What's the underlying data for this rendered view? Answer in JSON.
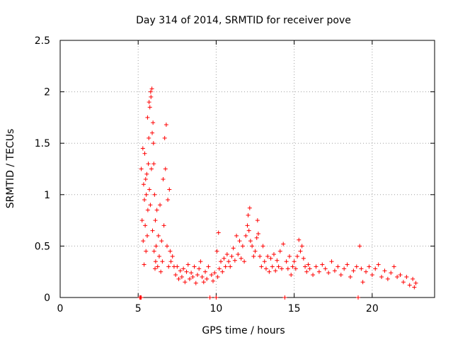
{
  "chart_data": {
    "type": "scatter",
    "title": "Day 314 of 2014, SRMTID for receiver pove",
    "xlabel": "GPS time / hours",
    "ylabel": "SRMTID / TECUs",
    "xlim": [
      0,
      24
    ],
    "ylim": [
      0,
      2.5
    ],
    "xticks": [
      "0",
      "5",
      "10",
      "15",
      "20"
    ],
    "yticks": [
      "0",
      "0.5",
      "1",
      "1.5",
      "2",
      "2.5"
    ],
    "grid": true,
    "legend": "none",
    "marker": "plus",
    "series": [
      {
        "color": "#ff0000",
        "points": [
          [
            5.1,
            0.0
          ],
          [
            5.15,
            0.0
          ],
          [
            5.2,
            0.0
          ],
          [
            5.2,
            1.25
          ],
          [
            5.25,
            0.75
          ],
          [
            5.3,
            1.45
          ],
          [
            5.32,
            0.55
          ],
          [
            5.35,
            1.1
          ],
          [
            5.38,
            0.32
          ],
          [
            5.4,
            0.95
          ],
          [
            5.42,
            1.4
          ],
          [
            5.45,
            0.7
          ],
          [
            5.48,
            1.15
          ],
          [
            5.5,
            0.45
          ],
          [
            5.52,
            1.0
          ],
          [
            5.55,
            1.2
          ],
          [
            5.58,
            0.6
          ],
          [
            5.6,
            1.75
          ],
          [
            5.62,
            0.85
          ],
          [
            5.65,
            1.3
          ],
          [
            5.68,
            1.55
          ],
          [
            5.7,
            1.9
          ],
          [
            5.72,
            1.05
          ],
          [
            5.75,
            1.85
          ],
          [
            5.78,
            0.9
          ],
          [
            5.8,
            2.0
          ],
          [
            5.82,
            1.95
          ],
          [
            5.85,
            1.25
          ],
          [
            5.88,
            2.03
          ],
          [
            5.9,
            1.6
          ],
          [
            5.92,
            0.65
          ],
          [
            5.95,
            1.7
          ],
          [
            5.98,
            1.5
          ],
          [
            6.0,
            1.3
          ],
          [
            6.02,
            0.45
          ],
          [
            6.05,
            1.0
          ],
          [
            6.08,
            0.28
          ],
          [
            6.1,
            0.75
          ],
          [
            6.12,
            0.35
          ],
          [
            6.15,
            0.5
          ],
          [
            6.2,
            0.85
          ],
          [
            6.25,
            0.3
          ],
          [
            6.3,
            0.6
          ],
          [
            6.35,
            0.4
          ],
          [
            6.4,
            0.9
          ],
          [
            6.45,
            0.25
          ],
          [
            6.5,
            0.55
          ],
          [
            6.55,
            0.35
          ],
          [
            6.6,
            1.15
          ],
          [
            6.65,
            0.7
          ],
          [
            6.7,
            1.55
          ],
          [
            6.75,
            1.25
          ],
          [
            6.8,
            1.68
          ],
          [
            6.85,
            0.5
          ],
          [
            6.9,
            0.95
          ],
          [
            6.95,
            0.3
          ],
          [
            7.0,
            1.05
          ],
          [
            7.05,
            0.45
          ],
          [
            7.1,
            0.35
          ],
          [
            7.2,
            0.4
          ],
          [
            7.3,
            0.3
          ],
          [
            7.4,
            0.22
          ],
          [
            7.5,
            0.3
          ],
          [
            7.6,
            0.18
          ],
          [
            7.7,
            0.26
          ],
          [
            7.8,
            0.2
          ],
          [
            7.9,
            0.28
          ],
          [
            8.0,
            0.15
          ],
          [
            8.1,
            0.25
          ],
          [
            8.2,
            0.32
          ],
          [
            8.3,
            0.18
          ],
          [
            8.4,
            0.24
          ],
          [
            8.5,
            0.2
          ],
          [
            8.6,
            0.3
          ],
          [
            8.7,
            0.14
          ],
          [
            8.8,
            0.22
          ],
          [
            8.9,
            0.28
          ],
          [
            9.0,
            0.35
          ],
          [
            9.1,
            0.2
          ],
          [
            9.2,
            0.15
          ],
          [
            9.3,
            0.25
          ],
          [
            9.4,
            0.18
          ],
          [
            9.5,
            0.3
          ],
          [
            9.6,
            0.0
          ],
          [
            9.7,
            0.22
          ],
          [
            9.8,
            0.16
          ],
          [
            9.9,
            0.24
          ],
          [
            10.0,
            0.0
          ],
          [
            10.05,
            0.45
          ],
          [
            10.1,
            0.2
          ],
          [
            10.15,
            0.63
          ],
          [
            10.2,
            0.28
          ],
          [
            10.3,
            0.35
          ],
          [
            10.4,
            0.25
          ],
          [
            10.5,
            0.38
          ],
          [
            10.6,
            0.3
          ],
          [
            10.7,
            0.42
          ],
          [
            10.8,
            0.35
          ],
          [
            10.9,
            0.3
          ],
          [
            11.0,
            0.4
          ],
          [
            11.1,
            0.48
          ],
          [
            11.2,
            0.36
          ],
          [
            11.3,
            0.6
          ],
          [
            11.4,
            0.42
          ],
          [
            11.5,
            0.55
          ],
          [
            11.6,
            0.38
          ],
          [
            11.7,
            0.5
          ],
          [
            11.8,
            0.35
          ],
          [
            11.9,
            0.6
          ],
          [
            12.0,
            0.7
          ],
          [
            12.05,
            0.8
          ],
          [
            12.1,
            0.65
          ],
          [
            12.15,
            0.87
          ],
          [
            12.2,
            0.55
          ],
          [
            12.3,
            0.5
          ],
          [
            12.4,
            0.4
          ],
          [
            12.5,
            0.45
          ],
          [
            12.6,
            0.58
          ],
          [
            12.65,
            0.75
          ],
          [
            12.7,
            0.62
          ],
          [
            12.8,
            0.4
          ],
          [
            12.9,
            0.3
          ],
          [
            13.0,
            0.5
          ],
          [
            13.1,
            0.35
          ],
          [
            13.2,
            0.28
          ],
          [
            13.3,
            0.4
          ],
          [
            13.4,
            0.25
          ],
          [
            13.5,
            0.38
          ],
          [
            13.6,
            0.3
          ],
          [
            13.7,
            0.42
          ],
          [
            13.8,
            0.26
          ],
          [
            13.9,
            0.36
          ],
          [
            14.0,
            0.3
          ],
          [
            14.1,
            0.45
          ],
          [
            14.2,
            0.28
          ],
          [
            14.3,
            0.52
          ],
          [
            14.4,
            0.0
          ],
          [
            14.5,
            0.35
          ],
          [
            14.6,
            0.28
          ],
          [
            14.7,
            0.4
          ],
          [
            14.8,
            0.22
          ],
          [
            14.9,
            0.3
          ],
          [
            15.0,
            0.35
          ],
          [
            15.1,
            0.28
          ],
          [
            15.2,
            0.4
          ],
          [
            15.3,
            0.56
          ],
          [
            15.4,
            0.45
          ],
          [
            15.5,
            0.5
          ],
          [
            15.6,
            0.38
          ],
          [
            15.7,
            0.3
          ],
          [
            15.8,
            0.25
          ],
          [
            15.9,
            0.32
          ],
          [
            16.0,
            0.28
          ],
          [
            16.2,
            0.22
          ],
          [
            16.4,
            0.3
          ],
          [
            16.6,
            0.25
          ],
          [
            16.8,
            0.32
          ],
          [
            17.0,
            0.28
          ],
          [
            17.2,
            0.24
          ],
          [
            17.4,
            0.35
          ],
          [
            17.6,
            0.26
          ],
          [
            17.8,
            0.3
          ],
          [
            18.0,
            0.22
          ],
          [
            18.2,
            0.28
          ],
          [
            18.4,
            0.32
          ],
          [
            18.6,
            0.2
          ],
          [
            18.8,
            0.26
          ],
          [
            19.0,
            0.3
          ],
          [
            19.1,
            0.0
          ],
          [
            19.2,
            0.5
          ],
          [
            19.3,
            0.28
          ],
          [
            19.4,
            0.15
          ],
          [
            19.6,
            0.25
          ],
          [
            19.8,
            0.3
          ],
          [
            20.0,
            0.22
          ],
          [
            20.2,
            0.28
          ],
          [
            20.4,
            0.32
          ],
          [
            20.6,
            0.2
          ],
          [
            20.8,
            0.26
          ],
          [
            21.0,
            0.18
          ],
          [
            21.2,
            0.24
          ],
          [
            21.4,
            0.3
          ],
          [
            21.6,
            0.2
          ],
          [
            21.8,
            0.22
          ],
          [
            22.0,
            0.15
          ],
          [
            22.2,
            0.2
          ],
          [
            22.4,
            0.12
          ],
          [
            22.6,
            0.18
          ],
          [
            22.7,
            0.1
          ],
          [
            22.8,
            0.14
          ]
        ]
      }
    ]
  }
}
